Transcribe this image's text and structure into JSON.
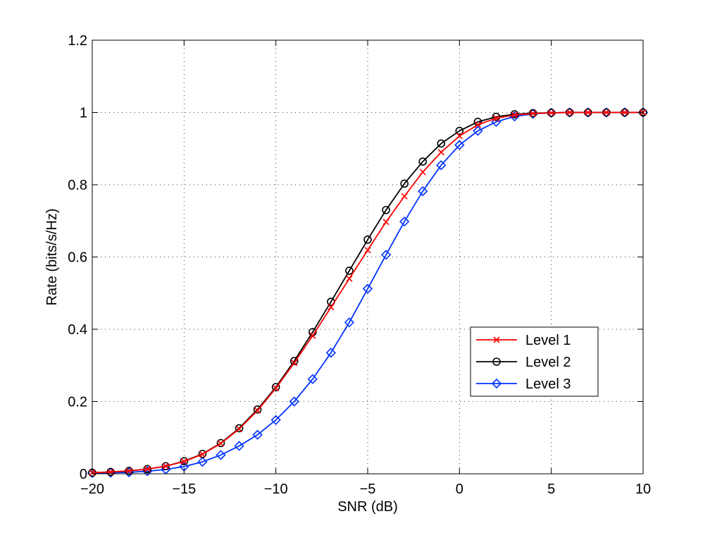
{
  "chart_data": {
    "type": "line",
    "title": "",
    "xlabel": "SNR (dB)",
    "ylabel": "Rate (bits/s/Hz)",
    "xlim": [
      -20,
      10
    ],
    "ylim": [
      0,
      1.2
    ],
    "grid": true,
    "xticks": [
      -20,
      -15,
      -10,
      -5,
      0,
      5,
      10
    ],
    "xtick_labels": [
      "−20",
      "−15",
      "−10",
      "−5",
      "0",
      "5",
      "10"
    ],
    "yticks": [
      0,
      0.2,
      0.4,
      0.6,
      0.8,
      1,
      1.2
    ],
    "ytick_labels": [
      "0",
      "0.2",
      "0.4",
      "0.6",
      "0.8",
      "1",
      "1.2"
    ],
    "legend_position": "lower-right",
    "x": [
      -20,
      -19,
      -18,
      -17,
      -16,
      -15,
      -14,
      -13,
      -12,
      -11,
      -10,
      -9,
      -8,
      -7,
      -6,
      -5,
      -4,
      -3,
      -2,
      -1,
      0,
      1,
      2,
      3,
      4,
      5,
      6,
      7,
      8,
      9,
      10
    ],
    "series": [
      {
        "name": "Level 1",
        "color": "#ff0000",
        "marker": "x",
        "values": [
          0.003,
          0.005,
          0.008,
          0.013,
          0.021,
          0.034,
          0.054,
          0.084,
          0.124,
          0.175,
          0.237,
          0.307,
          0.382,
          0.461,
          0.54,
          0.619,
          0.697,
          0.768,
          0.835,
          0.89,
          0.935,
          0.966,
          0.984,
          0.993,
          0.997,
          0.999,
          1.0,
          1.0,
          1.0,
          1.0,
          1.0
        ]
      },
      {
        "name": "Level 2",
        "color": "#000000",
        "marker": "o",
        "values": [
          0.003,
          0.005,
          0.008,
          0.013,
          0.021,
          0.035,
          0.055,
          0.085,
          0.126,
          0.178,
          0.24,
          0.312,
          0.392,
          0.476,
          0.562,
          0.648,
          0.73,
          0.803,
          0.864,
          0.914,
          0.949,
          0.974,
          0.988,
          0.995,
          0.998,
          0.999,
          1.0,
          1.0,
          1.0,
          1.0,
          1.0
        ]
      },
      {
        "name": "Level 3",
        "color": "#0033ff",
        "marker": "d",
        "values": [
          0.002,
          0.003,
          0.004,
          0.007,
          0.012,
          0.02,
          0.033,
          0.052,
          0.077,
          0.108,
          0.149,
          0.2,
          0.262,
          0.335,
          0.419,
          0.512,
          0.606,
          0.698,
          0.782,
          0.854,
          0.91,
          0.949,
          0.974,
          0.989,
          0.996,
          0.999,
          1.0,
          1.0,
          1.0,
          1.0,
          1.0
        ]
      }
    ]
  }
}
